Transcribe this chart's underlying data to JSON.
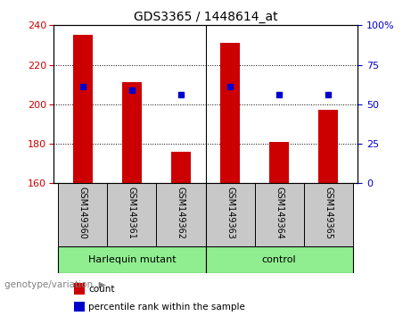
{
  "title": "GDS3365 / 1448614_at",
  "samples": [
    "GSM149360",
    "GSM149361",
    "GSM149362",
    "GSM149363",
    "GSM149364",
    "GSM149365"
  ],
  "count_values": [
    235,
    211,
    176,
    231,
    181,
    197
  ],
  "percentile_values": [
    209,
    207,
    205,
    209,
    205,
    205
  ],
  "ylim_left": [
    160,
    240
  ],
  "ylim_right": [
    0,
    100
  ],
  "yticks_left": [
    160,
    180,
    200,
    220,
    240
  ],
  "yticks_right": [
    0,
    25,
    50,
    75,
    100
  ],
  "ytick_right_labels": [
    "0",
    "25",
    "50",
    "75",
    "100%"
  ],
  "bar_color": "#cc0000",
  "dot_color": "#0000cc",
  "group1_label": "Harlequin mutant",
  "group2_label": "control",
  "group_color": "#90ee90",
  "sample_box_color": "#c8c8c8",
  "legend_count_label": "count",
  "legend_percentile_label": "percentile rank within the sample",
  "genotype_label": "genotype/variation",
  "tick_label_color_left": "#cc0000",
  "tick_label_color_right": "#0000cc",
  "bar_width": 0.4
}
